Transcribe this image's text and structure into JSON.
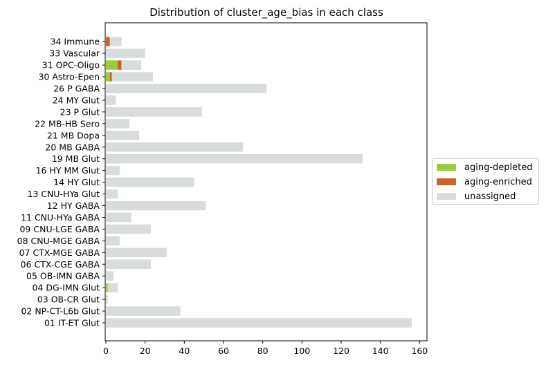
{
  "chart_data": {
    "type": "bar",
    "orientation": "horizontal",
    "stacked": true,
    "title": "Distribution of cluster_age_bias in each class",
    "xlabel": "",
    "ylabel": "",
    "xlim": [
      0,
      164
    ],
    "xticks": [
      0,
      20,
      40,
      60,
      80,
      100,
      120,
      140,
      160
    ],
    "grid": false,
    "legend_position": "center-right outside",
    "categories": [
      "01 IT-ET Glut",
      "02 NP-CT-L6b Glut",
      "03 OB-CR Glut",
      "04 DG-IMN Glut",
      "05 OB-IMN GABA",
      "06 CTX-CGE GABA",
      "07 CTX-MGE GABA",
      "08 CNU-MGE GABA",
      "09 CNU-LGE GABA",
      "11 CNU-HYa GABA",
      "12 HY GABA",
      "13 CNU-HYa Glut",
      "14 HY Glut",
      "16 HY MM Glut",
      "19 MB Glut",
      "20 MB GABA",
      "21 MB Dopa",
      "22 MB-HB Sero",
      "23 P Glut",
      "24 MY Glut",
      "26 P GABA",
      "30 Astro-Epen",
      "31 OPC-Oligo",
      "33 Vascular",
      "34 Immune"
    ],
    "series": [
      {
        "name": "aging-depleted",
        "color": "#9acd3c",
        "values": [
          0,
          0,
          0,
          1,
          0,
          0,
          0,
          0,
          0,
          0,
          0,
          0,
          0,
          0,
          0,
          0,
          0,
          0,
          0,
          0,
          0,
          2,
          6,
          0,
          0
        ]
      },
      {
        "name": "aging-enriched",
        "color": "#c8642d",
        "values": [
          0,
          0,
          0,
          0,
          0,
          0,
          0,
          0,
          0,
          0,
          0,
          0,
          0,
          0,
          0,
          0,
          0,
          0,
          0,
          0,
          0,
          1,
          2,
          0,
          2
        ]
      },
      {
        "name": "unassigned",
        "color": "#d9dcdc",
        "values": [
          156,
          38,
          1,
          5,
          4,
          23,
          31,
          7,
          23,
          13,
          51,
          6,
          45,
          7,
          131,
          70,
          17,
          12,
          49,
          5,
          82,
          21,
          10,
          20,
          6
        ]
      }
    ]
  }
}
